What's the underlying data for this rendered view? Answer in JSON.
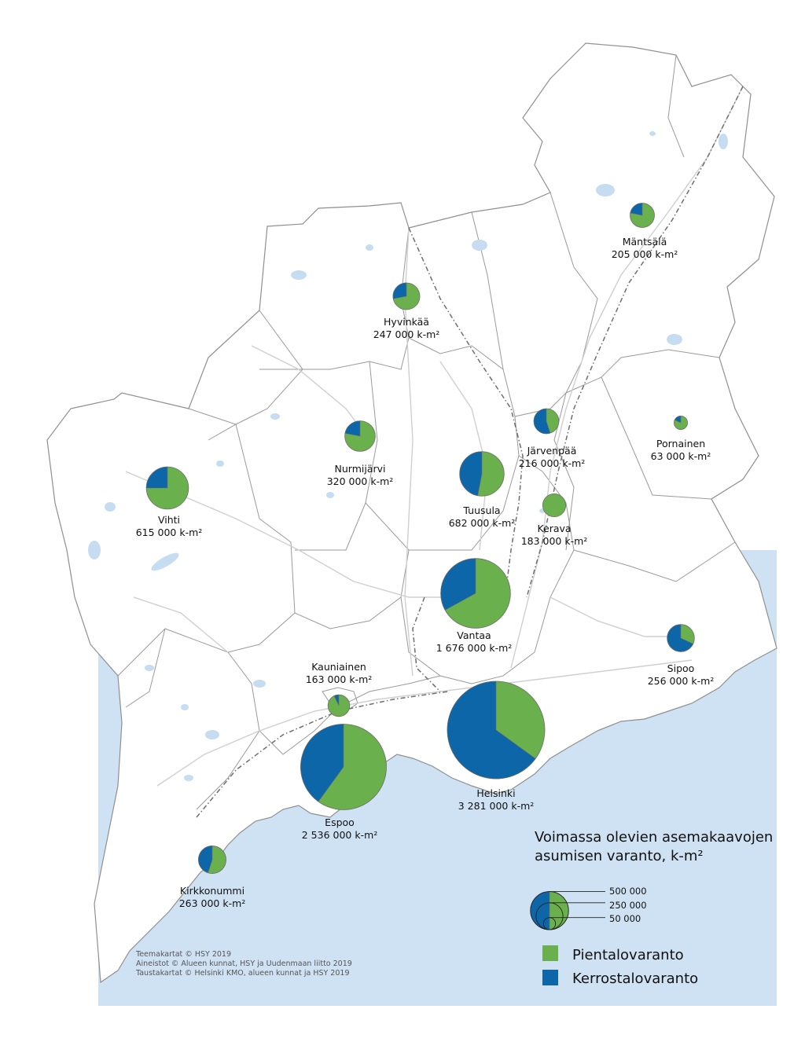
{
  "colors": {
    "sea": "#cfe2f3",
    "land": "#ffffff",
    "border": "#9a9a9a",
    "road": "#cfcfcf",
    "lake": "#c5dcf1",
    "pientalo": "#6ab04c",
    "kerrostalo": "#0d66a8",
    "pie_outline": "#6d6d6d"
  },
  "municipalities": [
    {
      "name": "Mäntsälä",
      "value_text": "205 000 k-m²",
      "value": 205000,
      "share_kerrostalo": 0.22
    },
    {
      "name": "Hyvinkää",
      "value_text": "247 000 k-m²",
      "value": 247000,
      "share_kerrostalo": 0.28
    },
    {
      "name": "Nurmijärvi",
      "value_text": "320 000 k-m²",
      "value": 320000,
      "share_kerrostalo": 0.22
    },
    {
      "name": "Järvenpää",
      "value_text": "216 000 k-m²",
      "value": 216000,
      "share_kerrostalo": 0.55
    },
    {
      "name": "Pornainen",
      "value_text": "63 000 k-m²",
      "value": 63000,
      "share_kerrostalo": 0.18
    },
    {
      "name": "Vihti",
      "value_text": "615 000 k-m²",
      "value": 615000,
      "share_kerrostalo": 0.25
    },
    {
      "name": "Tuusula",
      "value_text": "682 000 k-m²",
      "value": 682000,
      "share_kerrostalo": 0.47
    },
    {
      "name": "Kerava",
      "value_text": "183 000 k-m²",
      "value": 183000,
      "share_kerrostalo": 0.0
    },
    {
      "name": "Vantaa",
      "value_text": "1 676 000 k-m²",
      "value": 1676000,
      "share_kerrostalo": 0.33
    },
    {
      "name": "Sipoo",
      "value_text": "256 000 k-m²",
      "value": 256000,
      "share_kerrostalo": 0.68
    },
    {
      "name": "Kauniainen",
      "value_text": "163 000 k-m²",
      "value": 163000,
      "share_kerrostalo": 0.07
    },
    {
      "name": "Helsinki",
      "value_text": "3 281 000 k-m²",
      "value": 3281000,
      "share_kerrostalo": 0.65
    },
    {
      "name": "Espoo",
      "value_text": "2 536 000 k-m²",
      "value": 2536000,
      "share_kerrostalo": 0.4
    },
    {
      "name": "Kirkkonummi",
      "value_text": "263 000 k-m²",
      "value": 263000,
      "share_kerrostalo": 0.45
    }
  ],
  "legend": {
    "title_line1": "Voimassa olevien asemakaavojen",
    "title_line2": "asumisen varanto, k-m²",
    "size_labels": [
      "500 000",
      "250 000",
      "50 000"
    ],
    "categories": [
      {
        "label": "Pientalovaranto",
        "color": "#6ab04c"
      },
      {
        "label": "Kerrostalovaranto",
        "color": "#0d66a8"
      }
    ]
  },
  "credits": {
    "line1": "Teemakartat © HSY 2019",
    "line2": "Aineistot © Alueen kunnat, HSY ja Uudenmaan liitto 2019",
    "line3": "Taustakartat © Helsinki KMO, alueen kunnat ja HSY 2019"
  }
}
